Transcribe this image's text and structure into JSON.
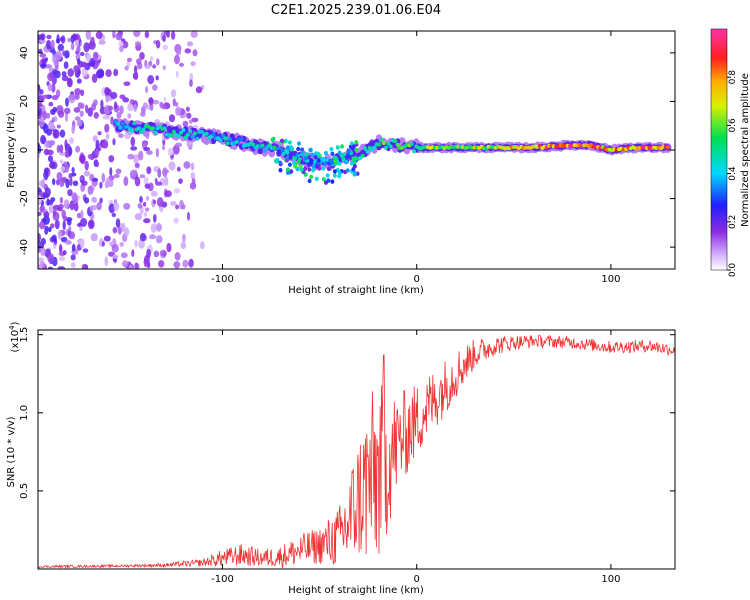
{
  "figure_title": "C2E1.2025.239.01.06.E04",
  "chart_data": [
    {
      "type": "heatmap",
      "title": "C2E1.2025.239.01.06.E04",
      "xlabel": "Height of straight line (km)",
      "ylabel": "Frequency (Hz)",
      "xlim": [
        -195,
        133
      ],
      "ylim": [
        -49,
        49
      ],
      "xticks": [
        -100,
        0,
        100
      ],
      "xticklabels": [
        "-100",
        "0",
        "100"
      ],
      "yticks": [
        -40,
        -20,
        0,
        20,
        40
      ],
      "yticklabels": [
        "-40",
        "-20",
        "0",
        "20",
        "40"
      ],
      "grid": false,
      "colorbar": {
        "label": "Normalized spectral amplitude",
        "range": [
          0,
          1
        ],
        "ticks": [
          0.0,
          0.2,
          0.4,
          0.6,
          0.8
        ],
        "ticklabels": [
          "0.0",
          "0.2",
          "0.4",
          "0.6",
          "0.8"
        ],
        "colormap": "rainbow (white-purple-blue-cyan-green-yellow-orange-red-magenta)"
      },
      "ridge": {
        "description": "Dominant frequency track vs height",
        "x": [
          -155,
          -140,
          -120,
          -110,
          -100,
          -90,
          -80,
          -70,
          -60,
          -50,
          -40,
          -30,
          -20,
          -10,
          0,
          20,
          40,
          60,
          80,
          90,
          100,
          110,
          130
        ],
        "frequency": [
          10,
          9,
          7,
          6,
          5,
          3,
          1,
          0,
          -3,
          -6,
          -4,
          -2,
          3,
          2,
          1,
          1,
          1,
          1,
          2,
          2,
          0,
          1,
          1
        ],
        "amplitude": [
          0.45,
          0.55,
          0.5,
          0.45,
          0.5,
          0.45,
          0.5,
          0.45,
          0.5,
          0.4,
          0.45,
          0.55,
          0.6,
          0.6,
          0.65,
          0.7,
          0.75,
          0.9,
          0.95,
          0.9,
          0.85,
          0.9,
          0.95
        ]
      },
      "noise_region": {
        "x_range": [
          -195,
          -110
        ],
        "frequency_range": [
          -49,
          49
        ],
        "amplitude_range": [
          0.05,
          0.25
        ]
      }
    },
    {
      "type": "line",
      "xlabel": "Height of straight line (km)",
      "ylabel": "SNR (10 * v/v)",
      "y_scale_note": "(x10",
      "y_scale_exponent": "4",
      "xlim": [
        -195,
        133
      ],
      "ylim": [
        0,
        15300
      ],
      "xticks": [
        -100,
        0,
        100
      ],
      "xticklabels": [
        "-100",
        "0",
        "100"
      ],
      "yticks": [
        5000,
        10000,
        15000
      ],
      "yticklabels": [
        "0.5",
        "1.0",
        "1.5"
      ],
      "grid": false,
      "series": [
        {
          "name": "SNR",
          "color": "#ee3333",
          "envelope_x": [
            -195,
            -150,
            -130,
            -110,
            -100,
            -90,
            -80,
            -70,
            -60,
            -50,
            -40,
            -35,
            -30,
            -25,
            -20,
            -15,
            -10,
            -5,
            0,
            10,
            20,
            30,
            40,
            50,
            60,
            80,
            100,
            120,
            133
          ],
          "envelope_mean": [
            150,
            200,
            250,
            400,
            700,
            900,
            700,
            800,
            1200,
            1500,
            2000,
            3000,
            4500,
            5500,
            6000,
            7000,
            8000,
            8800,
            9500,
            11000,
            12500,
            13800,
            14300,
            14500,
            14600,
            14500,
            14200,
            14300,
            14000
          ],
          "envelope_spread": [
            100,
            100,
            150,
            300,
            700,
            900,
            700,
            900,
            1300,
            1500,
            2500,
            4000,
            5000,
            7000,
            7500,
            6000,
            4000,
            3500,
            3000,
            2500,
            2000,
            1200,
            800,
            600,
            500,
            500,
            500,
            500,
            500
          ],
          "peak_value": 13700,
          "peak_x": -17
        }
      ]
    }
  ]
}
